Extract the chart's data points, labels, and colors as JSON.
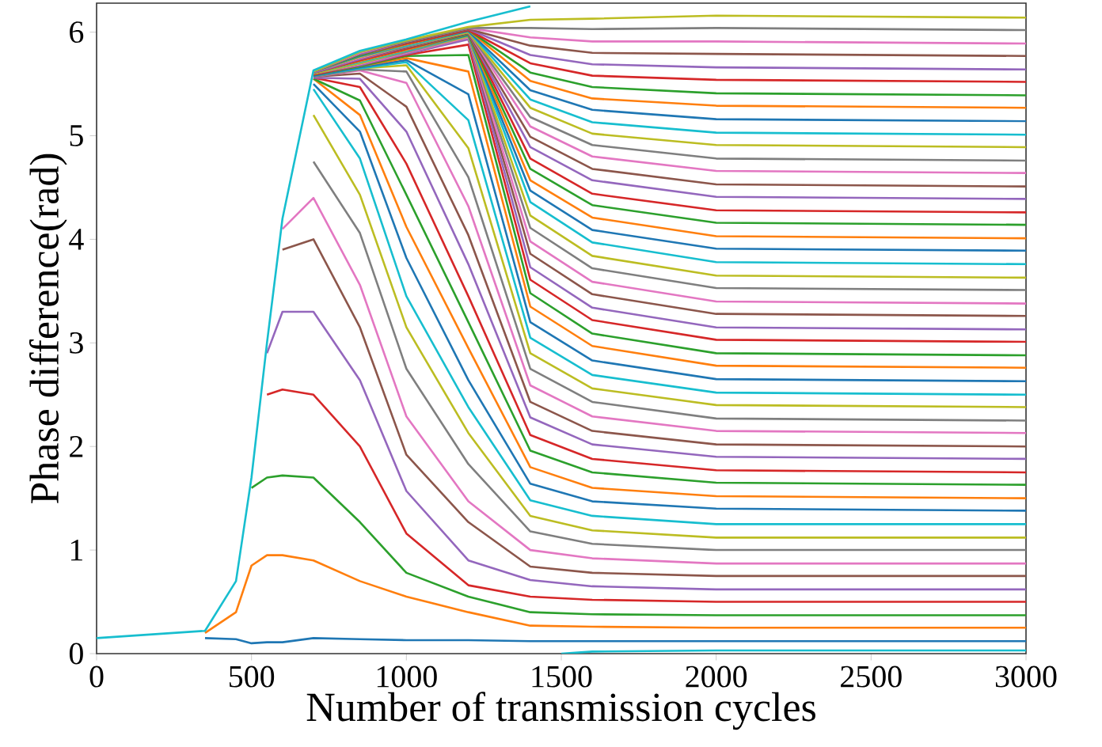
{
  "chart_data": {
    "type": "line",
    "xlabel": "Number of transmission cycles",
    "ylabel": "Phase difference(rad)",
    "xlim": [
      0,
      3000
    ],
    "ylim": [
      0,
      6.28
    ],
    "xticks": [
      0,
      500,
      1000,
      1500,
      2000,
      2500,
      3000
    ],
    "yticks": [
      0,
      1,
      2,
      3,
      4,
      5,
      6
    ],
    "x": [
      350,
      450,
      500,
      550,
      600,
      700,
      850,
      1000,
      1200,
      1400,
      1600,
      2000,
      3000
    ],
    "series": [
      {
        "color": "#1f77b4",
        "values": [
          0.15,
          0.14,
          0.1,
          0.11,
          0.11,
          0.15,
          0.14,
          0.13,
          0.13,
          0.12,
          0.12,
          0.12,
          0.12
        ]
      },
      {
        "color": "#ff7f0e",
        "values": [
          0.2,
          0.4,
          0.85,
          0.95,
          0.95,
          0.9,
          0.7,
          0.55,
          0.4,
          0.27,
          0.26,
          0.25,
          0.25
        ]
      },
      {
        "color": "#2ca02c",
        "values": [
          null,
          null,
          1.6,
          1.7,
          1.72,
          1.7,
          1.27,
          0.78,
          0.55,
          0.4,
          0.38,
          0.37,
          0.37
        ]
      },
      {
        "color": "#d62728",
        "values": [
          null,
          null,
          null,
          2.5,
          2.55,
          2.5,
          2.0,
          1.16,
          0.66,
          0.55,
          0.52,
          0.5,
          0.5
        ]
      },
      {
        "color": "#9467bd",
        "values": [
          null,
          null,
          null,
          2.9,
          3.3,
          3.3,
          2.64,
          1.57,
          0.9,
          0.71,
          0.65,
          0.62,
          0.62
        ]
      },
      {
        "color": "#8c564b",
        "values": [
          null,
          null,
          null,
          null,
          3.9,
          4.0,
          3.15,
          1.92,
          1.27,
          0.84,
          0.78,
          0.75,
          0.75
        ]
      },
      {
        "color": "#e377c2",
        "values": [
          null,
          null,
          null,
          null,
          4.1,
          4.4,
          3.56,
          2.29,
          1.47,
          1.0,
          0.92,
          0.87,
          0.87
        ]
      },
      {
        "color": "#7f7f7f",
        "values": [
          null,
          null,
          null,
          null,
          null,
          4.75,
          4.06,
          2.75,
          1.83,
          1.18,
          1.06,
          1.0,
          1.0
        ]
      },
      {
        "color": "#bcbd22",
        "values": [
          null,
          null,
          null,
          null,
          null,
          5.2,
          4.43,
          3.15,
          2.13,
          1.33,
          1.19,
          1.12,
          1.12
        ]
      },
      {
        "color": "#17becf",
        "values": [
          null,
          null,
          null,
          null,
          null,
          5.45,
          4.78,
          3.45,
          2.38,
          1.48,
          1.33,
          1.25,
          1.25
        ]
      },
      {
        "color": "#1f77b4",
        "values": [
          null,
          null,
          null,
          null,
          null,
          5.5,
          5.04,
          3.82,
          2.64,
          1.64,
          1.47,
          1.4,
          1.38
        ]
      },
      {
        "color": "#ff7f0e",
        "values": [
          null,
          null,
          null,
          null,
          null,
          5.55,
          5.2,
          4.12,
          2.95,
          1.8,
          1.6,
          1.52,
          1.5
        ]
      },
      {
        "color": "#2ca02c",
        "values": [
          null,
          null,
          null,
          null,
          null,
          5.55,
          5.34,
          4.43,
          3.2,
          1.96,
          1.75,
          1.65,
          1.63
        ]
      },
      {
        "color": "#d62728",
        "values": [
          null,
          null,
          null,
          null,
          null,
          5.56,
          5.47,
          4.73,
          3.45,
          2.11,
          1.88,
          1.77,
          1.75
        ]
      },
      {
        "color": "#9467bd",
        "values": [
          null,
          null,
          null,
          null,
          null,
          5.56,
          5.55,
          5.04,
          3.76,
          2.28,
          2.02,
          1.9,
          1.88
        ]
      },
      {
        "color": "#8c564b",
        "values": [
          null,
          null,
          null,
          null,
          null,
          5.57,
          5.6,
          5.28,
          4.04,
          2.43,
          2.15,
          2.02,
          2.0
        ]
      },
      {
        "color": "#e377c2",
        "values": [
          null,
          null,
          null,
          null,
          null,
          5.57,
          5.63,
          5.51,
          4.32,
          2.59,
          2.29,
          2.15,
          2.13
        ]
      },
      {
        "color": "#7f7f7f",
        "values": [
          null,
          null,
          null,
          null,
          null,
          5.57,
          5.64,
          5.62,
          4.6,
          2.75,
          2.43,
          2.27,
          2.25
        ]
      },
      {
        "color": "#bcbd22",
        "values": [
          null,
          null,
          null,
          null,
          null,
          5.58,
          5.65,
          5.68,
          4.88,
          2.9,
          2.56,
          2.4,
          2.38
        ]
      },
      {
        "color": "#17becf",
        "values": [
          null,
          null,
          null,
          null,
          null,
          5.58,
          5.65,
          5.71,
          5.15,
          3.05,
          2.69,
          2.52,
          2.5
        ]
      },
      {
        "color": "#1f77b4",
        "values": [
          null,
          null,
          null,
          null,
          null,
          5.58,
          5.66,
          5.73,
          5.4,
          3.2,
          2.83,
          2.65,
          2.63
        ]
      },
      {
        "color": "#ff7f0e",
        "values": [
          null,
          null,
          null,
          null,
          null,
          5.59,
          5.67,
          5.75,
          5.62,
          3.35,
          2.97,
          2.78,
          2.76
        ]
      },
      {
        "color": "#2ca02c",
        "values": [
          null,
          null,
          null,
          null,
          null,
          5.59,
          5.67,
          5.77,
          5.78,
          3.48,
          3.09,
          2.9,
          2.88
        ]
      },
      {
        "color": "#d62728",
        "values": [
          null,
          null,
          null,
          null,
          null,
          5.59,
          5.68,
          5.78,
          5.88,
          3.61,
          3.22,
          3.03,
          3.01
        ]
      },
      {
        "color": "#9467bd",
        "values": [
          null,
          null,
          null,
          null,
          null,
          5.6,
          5.68,
          5.79,
          5.93,
          3.73,
          3.34,
          3.15,
          3.13
        ]
      },
      {
        "color": "#8c564b",
        "values": [
          null,
          null,
          null,
          null,
          null,
          5.6,
          5.69,
          5.8,
          5.95,
          3.86,
          3.47,
          3.28,
          3.26
        ]
      },
      {
        "color": "#e377c2",
        "values": [
          null,
          null,
          null,
          null,
          null,
          5.6,
          5.69,
          5.8,
          5.95,
          3.98,
          3.59,
          3.4,
          3.38
        ]
      },
      {
        "color": "#7f7f7f",
        "values": [
          null,
          null,
          null,
          null,
          null,
          5.6,
          5.7,
          5.81,
          5.96,
          4.11,
          3.72,
          3.53,
          3.51
        ]
      },
      {
        "color": "#bcbd22",
        "values": [
          null,
          null,
          null,
          null,
          null,
          5.6,
          5.7,
          5.82,
          5.96,
          4.23,
          3.84,
          3.65,
          3.63
        ]
      },
      {
        "color": "#17becf",
        "values": [
          null,
          null,
          null,
          null,
          null,
          5.61,
          5.71,
          5.82,
          5.97,
          4.36,
          3.97,
          3.78,
          3.76
        ]
      },
      {
        "color": "#1f77b4",
        "values": [
          null,
          null,
          null,
          null,
          null,
          5.61,
          5.72,
          5.83,
          5.97,
          4.47,
          4.09,
          3.91,
          3.89
        ]
      },
      {
        "color": "#ff7f0e",
        "values": [
          null,
          null,
          null,
          null,
          null,
          5.61,
          5.72,
          5.83,
          5.98,
          4.57,
          4.21,
          4.03,
          4.01
        ]
      },
      {
        "color": "#2ca02c",
        "values": [
          null,
          null,
          null,
          null,
          null,
          5.61,
          5.73,
          5.84,
          5.98,
          4.68,
          4.33,
          4.16,
          4.14
        ]
      },
      {
        "color": "#d62728",
        "values": [
          null,
          null,
          null,
          null,
          null,
          5.61,
          5.73,
          5.84,
          5.99,
          4.78,
          4.44,
          4.28,
          4.26
        ]
      },
      {
        "color": "#9467bd",
        "values": [
          null,
          null,
          null,
          null,
          null,
          5.61,
          5.74,
          5.85,
          5.99,
          4.89,
          4.57,
          4.41,
          4.39
        ]
      },
      {
        "color": "#8c564b",
        "values": [
          null,
          null,
          null,
          null,
          null,
          5.62,
          5.75,
          5.85,
          5.99,
          4.99,
          4.68,
          4.53,
          4.51
        ]
      },
      {
        "color": "#e377c2",
        "values": [
          null,
          null,
          null,
          null,
          null,
          5.62,
          5.75,
          5.86,
          6.0,
          5.09,
          4.8,
          4.66,
          4.64
        ]
      },
      {
        "color": "#7f7f7f",
        "values": [
          null,
          null,
          null,
          null,
          null,
          5.62,
          5.76,
          5.86,
          6.0,
          5.18,
          4.91,
          4.78,
          4.76
        ]
      },
      {
        "color": "#bcbd22",
        "values": [
          null,
          null,
          null,
          null,
          null,
          5.62,
          5.76,
          5.87,
          6.0,
          5.27,
          5.02,
          4.91,
          4.89
        ]
      },
      {
        "color": "#17becf",
        "values": [
          null,
          null,
          null,
          null,
          null,
          5.62,
          5.77,
          5.87,
          6.01,
          5.35,
          5.13,
          5.03,
          5.01
        ]
      },
      {
        "color": "#1f77b4",
        "values": [
          null,
          null,
          null,
          null,
          null,
          5.62,
          5.77,
          5.88,
          6.01,
          5.44,
          5.25,
          5.16,
          5.14
        ]
      },
      {
        "color": "#ff7f0e",
        "values": [
          null,
          null,
          null,
          null,
          null,
          5.62,
          5.78,
          5.88,
          6.02,
          5.53,
          5.36,
          5.29,
          5.27
        ]
      },
      {
        "color": "#2ca02c",
        "values": [
          null,
          null,
          null,
          null,
          null,
          5.62,
          5.78,
          5.89,
          6.02,
          5.61,
          5.47,
          5.41,
          5.39
        ]
      },
      {
        "color": "#d62728",
        "values": [
          null,
          null,
          null,
          null,
          null,
          5.62,
          5.79,
          5.89,
          6.02,
          5.7,
          5.58,
          5.54,
          5.52
        ]
      },
      {
        "color": "#9467bd",
        "values": [
          null,
          null,
          null,
          null,
          null,
          5.62,
          5.79,
          5.9,
          6.03,
          5.78,
          5.69,
          5.66,
          5.64
        ]
      },
      {
        "color": "#8c564b",
        "values": [
          null,
          null,
          null,
          null,
          null,
          5.62,
          5.8,
          5.9,
          6.03,
          5.87,
          5.8,
          5.79,
          5.77
        ]
      },
      {
        "color": "#e377c2",
        "values": [
          null,
          null,
          null,
          null,
          null,
          5.62,
          5.8,
          5.91,
          6.04,
          5.95,
          5.91,
          5.91,
          5.89
        ]
      },
      {
        "color": "#7f7f7f",
        "values": [
          null,
          null,
          null,
          null,
          null,
          5.62,
          5.81,
          5.91,
          6.04,
          6.04,
          6.03,
          6.04,
          6.02
        ]
      },
      {
        "color": "#bcbd22",
        "values": [
          null,
          null,
          null,
          null,
          null,
          5.62,
          5.81,
          5.92,
          6.05,
          6.12,
          6.13,
          6.16,
          6.14
        ]
      },
      {
        "color": "#17becf",
        "x": [
          0,
          350,
          450,
          500,
          550,
          600,
          700,
          850,
          1000,
          1200,
          1400,
          1460,
          1500,
          1600,
          2000,
          3000
        ],
        "values": [
          0.15,
          0.22,
          0.7,
          1.7,
          3.0,
          4.2,
          5.63,
          5.82,
          5.93,
          6.1,
          6.25,
          null,
          0.0,
          0.02,
          0.03,
          0.03
        ]
      }
    ]
  }
}
